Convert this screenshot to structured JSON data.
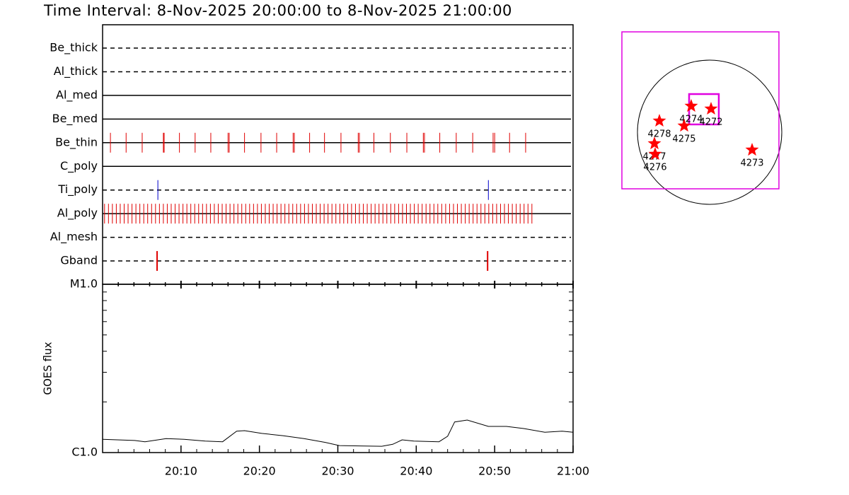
{
  "title": "Time Interval:  8-Nov-2025 20:00:00 to  8-Nov-2025 21:00:00",
  "timeline": {
    "xlim": [
      0,
      60
    ],
    "xticks": [
      {
        "value": 10,
        "label": "20:10"
      },
      {
        "value": 20,
        "label": "20:20"
      },
      {
        "value": 30,
        "label": "20:30"
      },
      {
        "value": 40,
        "label": "20:40"
      },
      {
        "value": 50,
        "label": "20:50"
      },
      {
        "value": 60,
        "label": "21:00"
      }
    ],
    "xminor": [
      2,
      4,
      6,
      8,
      12,
      14,
      16,
      18,
      22,
      24,
      26,
      28,
      32,
      34,
      36,
      38,
      42,
      44,
      46,
      48,
      52,
      54,
      56,
      58
    ],
    "filters": [
      {
        "name": "Be_thick",
        "style": "dashed",
        "color": "#cc0000",
        "times": []
      },
      {
        "name": "Al_thick",
        "style": "dashed",
        "color": "#cc0000",
        "times": []
      },
      {
        "name": "Al_med",
        "style": "solid",
        "color": "#cc0000",
        "times": []
      },
      {
        "name": "Be_med",
        "style": "solid",
        "color": "#cc0000",
        "times": []
      },
      {
        "name": "Be_thin",
        "style": "solid",
        "color": "#e00000",
        "times": [
          1.0,
          3.0,
          5.05,
          7.75,
          7.85,
          9.8,
          11.8,
          13.8,
          16.0,
          16.15,
          18.1,
          20.2,
          22.2,
          24.3,
          24.45,
          26.4,
          28.3,
          30.4,
          32.6,
          32.75,
          34.6,
          36.7,
          38.8,
          40.9,
          41.05,
          43.0,
          45.1,
          47.2,
          49.8,
          50.0,
          51.9,
          53.95
        ]
      },
      {
        "name": "C_poly",
        "style": "solid",
        "color": "#cc0000",
        "times": []
      },
      {
        "name": "Ti_poly",
        "style": "dashed",
        "color": "#0000cc",
        "times": [
          7.05,
          49.2
        ]
      },
      {
        "name": "Al_poly",
        "style": "solid",
        "color": "#e00000",
        "times": [
          0.25,
          0.75,
          1.25,
          1.75,
          2.25,
          2.75,
          3.25,
          3.75,
          4.25,
          4.75,
          5.25,
          5.75,
          6.25,
          6.75,
          7.25,
          7.75,
          8.25,
          8.75,
          9.25,
          9.75,
          10.25,
          10.75,
          11.25,
          11.75,
          12.25,
          12.75,
          13.25,
          13.75,
          14.25,
          14.75,
          15.25,
          15.75,
          16.25,
          16.75,
          17.25,
          17.75,
          18.25,
          18.75,
          19.25,
          19.75,
          20.25,
          20.75,
          21.25,
          21.75,
          22.25,
          22.75,
          23.25,
          23.75,
          24.25,
          24.75,
          25.25,
          25.75,
          26.25,
          26.75,
          27.25,
          27.75,
          28.25,
          28.75,
          29.25,
          29.75,
          30.25,
          30.75,
          31.25,
          31.75,
          32.25,
          32.75,
          33.25,
          33.75,
          34.25,
          34.75,
          35.25,
          35.75,
          36.25,
          36.75,
          37.25,
          37.75,
          38.25,
          38.75,
          39.25,
          39.75,
          40.25,
          40.75,
          41.25,
          41.75,
          42.25,
          42.75,
          43.25,
          43.75,
          44.25,
          44.75,
          45.25,
          45.75,
          46.25,
          46.75,
          47.25,
          47.75,
          48.25,
          48.75,
          49.25,
          49.75,
          50.25,
          50.75,
          51.25,
          51.75,
          52.25,
          52.75,
          53.25,
          53.75,
          54.25,
          54.75
        ]
      },
      {
        "name": "Al_mesh",
        "style": "dashed",
        "color": "#cc0000",
        "times": []
      },
      {
        "name": "Gband",
        "style": "dashed",
        "color": "#e00000",
        "times": [
          6.95,
          49.1
        ]
      }
    ]
  },
  "goes": {
    "ylabel": "GOES flux",
    "log": true,
    "ylim": [
      1e-06,
      1e-05
    ],
    "yticks": [
      {
        "value": 1e-06,
        "label": "C1.0"
      },
      {
        "value": 1e-05,
        "label": "M1.0"
      }
    ],
    "yminor": [
      2e-06,
      3e-06,
      4e-06,
      5e-06,
      6e-06,
      7e-06,
      8e-06,
      9e-06
    ],
    "minutes": [
      0,
      4.1,
      5.4,
      8.1,
      10.4,
      13.1,
      15.3,
      17.1,
      18.1,
      20.3,
      23.0,
      25.7,
      28.4,
      30.2,
      35.6,
      37.0,
      38.2,
      39.7,
      42.9,
      44.0,
      44.9,
      46.5,
      49.2,
      51.5,
      53.7,
      56.4,
      58.6,
      60
    ],
    "flux": [
      1.2e-06,
      1.18e-06,
      1.16e-06,
      1.21e-06,
      1.2e-06,
      1.17e-06,
      1.16e-06,
      1.34e-06,
      1.35e-06,
      1.3e-06,
      1.26e-06,
      1.21e-06,
      1.15e-06,
      1.1e-06,
      1.09e-06,
      1.12e-06,
      1.19e-06,
      1.17e-06,
      1.16e-06,
      1.25e-06,
      1.52e-06,
      1.56e-06,
      1.43e-06,
      1.43e-06,
      1.39e-06,
      1.32e-06,
      1.34e-06,
      1.32e-06
    ],
    "color": "#000000"
  },
  "map": {
    "solar_radius": 960,
    "fov": {
      "xlim": [
        -1167,
        922
      ],
      "ylim": [
        -753,
        1336
      ],
      "color": "#e000e0"
    },
    "xrt_fov": {
      "xlim": [
        -273,
        122
      ],
      "ylim": [
        104,
        508
      ],
      "color": "#e000e0"
    },
    "star_color": "#ff0000",
    "regions": [
      {
        "label": "4274",
        "x": -245,
        "y": 348
      },
      {
        "label": "4272",
        "x": 19,
        "y": 311
      },
      {
        "label": "4278",
        "x": -668,
        "y": 151
      },
      {
        "label": "4275",
        "x": -339,
        "y": 85
      },
      {
        "label": "4277",
        "x": -734,
        "y": -151
      },
      {
        "label": "4276",
        "x": -725,
        "y": -292
      },
      {
        "label": "4273",
        "x": 565,
        "y": -235
      }
    ]
  }
}
